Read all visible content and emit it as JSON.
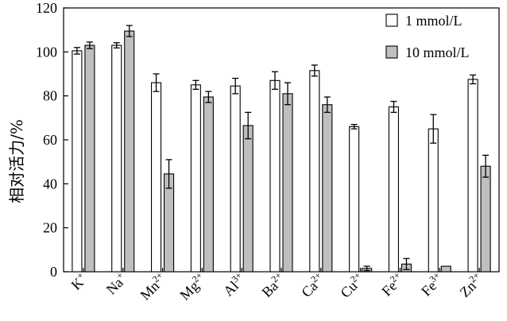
{
  "chart_data": {
    "type": "bar",
    "title": "",
    "xlabel": "",
    "ylabel": "相对活力/%",
    "ylim": [
      0,
      120
    ],
    "yticks": [
      0,
      20,
      40,
      60,
      80,
      100,
      120
    ],
    "grid": false,
    "legend_position": "top-right",
    "categories": [
      {
        "base": "K",
        "sup": "+"
      },
      {
        "base": "Na",
        "sup": "+"
      },
      {
        "base": "Mn",
        "sup": "2+"
      },
      {
        "base": "Mg",
        "sup": "2+"
      },
      {
        "base": "Al",
        "sup": "3+"
      },
      {
        "base": "Ba",
        "sup": "2+"
      },
      {
        "base": "Ca",
        "sup": "2+"
      },
      {
        "base": "Cu",
        "sup": "2+"
      },
      {
        "base": "Fe",
        "sup": "2+"
      },
      {
        "base": "Fe",
        "sup": "3+"
      },
      {
        "base": "Zn",
        "sup": "2+"
      }
    ],
    "series": [
      {
        "name": "1 mmol/L",
        "color": "#ffffff",
        "values": [
          100.5,
          103,
          86,
          85,
          84.5,
          87,
          91.5,
          66,
          75,
          65,
          87.5
        ],
        "errors": [
          1.5,
          1.2,
          4,
          2,
          3.5,
          4,
          2.5,
          1,
          2.5,
          6.5,
          2
        ]
      },
      {
        "name": "10 mmol/L",
        "color": "#bfbfbf",
        "values": [
          103,
          109.5,
          44.5,
          79.5,
          66.5,
          81,
          76,
          1.5,
          3.5,
          2.5,
          48
        ],
        "errors": [
          1.5,
          2.5,
          6.5,
          2.5,
          6,
          5,
          3.5,
          1,
          2.5,
          0,
          5
        ]
      }
    ]
  }
}
